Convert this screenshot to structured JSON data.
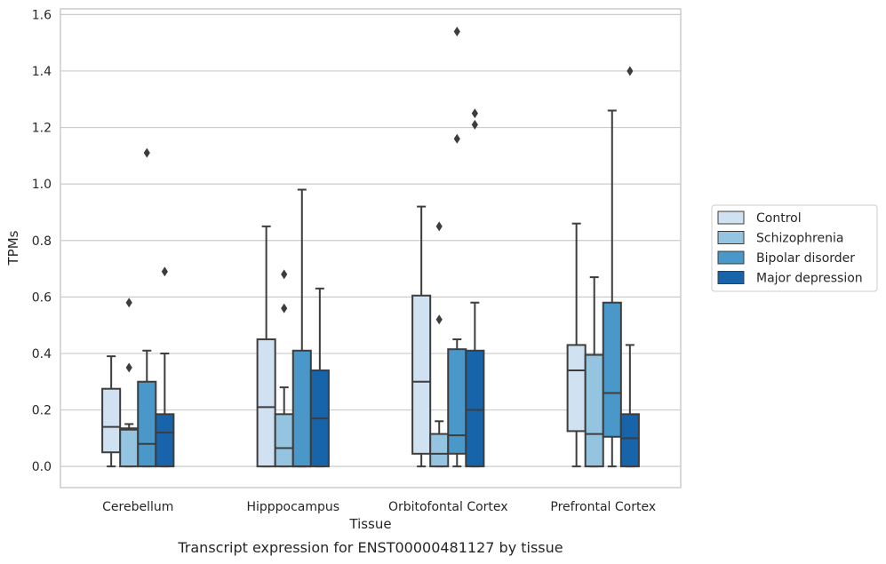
{
  "caption": "Transcript expression for ENST00000481127 by tissue",
  "chart_data": {
    "type": "box",
    "xlabel": "Tissue",
    "ylabel": "TPMs",
    "ylim": [
      -0.075,
      1.62
    ],
    "yticks": [
      "0.0",
      "0.2",
      "0.4",
      "0.6",
      "0.8",
      "1.0",
      "1.2",
      "1.4",
      "1.6"
    ],
    "grid": "horizontal",
    "legend_position": "right",
    "categories": [
      "Cerebellum",
      "Hipppocampus",
      "Orbitofontal Cortex",
      "Prefrontal Cortex"
    ],
    "series": [
      {
        "name": "Control",
        "color": "#d0e1f2",
        "boxes": [
          {
            "whisker_low": 0.0,
            "q1": 0.05,
            "median": 0.14,
            "q3": 0.275,
            "whisker_high": 0.39,
            "outliers": []
          },
          {
            "whisker_low": 0.0,
            "q1": 0.0,
            "median": 0.21,
            "q3": 0.45,
            "whisker_high": 0.85,
            "outliers": []
          },
          {
            "whisker_low": 0.0,
            "q1": 0.045,
            "median": 0.3,
            "q3": 0.605,
            "whisker_high": 0.92,
            "outliers": []
          },
          {
            "whisker_low": 0.0,
            "q1": 0.125,
            "median": 0.34,
            "q3": 0.43,
            "whisker_high": 0.86,
            "outliers": []
          }
        ]
      },
      {
        "name": "Schizophrenia",
        "color": "#94c4df",
        "boxes": [
          {
            "whisker_low": 0.0,
            "q1": 0.0,
            "median": 0.13,
            "q3": 0.135,
            "whisker_high": 0.15,
            "outliers": [
              0.35,
              0.58
            ]
          },
          {
            "whisker_low": 0.0,
            "q1": 0.0,
            "median": 0.065,
            "q3": 0.185,
            "whisker_high": 0.28,
            "outliers": [
              0.56,
              0.68
            ]
          },
          {
            "whisker_low": 0.0,
            "q1": 0.0,
            "median": 0.045,
            "q3": 0.115,
            "whisker_high": 0.16,
            "outliers": [
              0.52,
              0.85
            ]
          },
          {
            "whisker_low": 0.0,
            "q1": 0.0,
            "median": 0.115,
            "q3": 0.395,
            "whisker_high": 0.67,
            "outliers": []
          }
        ]
      },
      {
        "name": "Bipolar disorder",
        "color": "#4a98c9",
        "boxes": [
          {
            "whisker_low": 0.0,
            "q1": 0.0,
            "median": 0.08,
            "q3": 0.3,
            "whisker_high": 0.41,
            "outliers": [
              1.11
            ]
          },
          {
            "whisker_low": 0.0,
            "q1": 0.0,
            "median": 0.0,
            "q3": 0.41,
            "whisker_high": 0.98,
            "outliers": []
          },
          {
            "whisker_low": 0.0,
            "q1": 0.045,
            "median": 0.11,
            "q3": 0.415,
            "whisker_high": 0.45,
            "outliers": [
              1.16,
              1.54
            ]
          },
          {
            "whisker_low": 0.0,
            "q1": 0.105,
            "median": 0.26,
            "q3": 0.58,
            "whisker_high": 1.26,
            "outliers": []
          }
        ]
      },
      {
        "name": "Major depression",
        "color": "#1764ab",
        "boxes": [
          {
            "whisker_low": 0.0,
            "q1": 0.0,
            "median": 0.12,
            "q3": 0.185,
            "whisker_high": 0.4,
            "outliers": [
              0.69
            ]
          },
          {
            "whisker_low": 0.0,
            "q1": 0.0,
            "median": 0.17,
            "q3": 0.34,
            "whisker_high": 0.63,
            "outliers": []
          },
          {
            "whisker_low": 0.0,
            "q1": 0.0,
            "median": 0.2,
            "q3": 0.41,
            "whisker_high": 0.58,
            "outliers": [
              1.21,
              1.25
            ]
          },
          {
            "whisker_low": 0.0,
            "q1": 0.0,
            "median": 0.1,
            "q3": 0.185,
            "whisker_high": 0.43,
            "outliers": [
              1.4
            ]
          }
        ]
      }
    ]
  }
}
